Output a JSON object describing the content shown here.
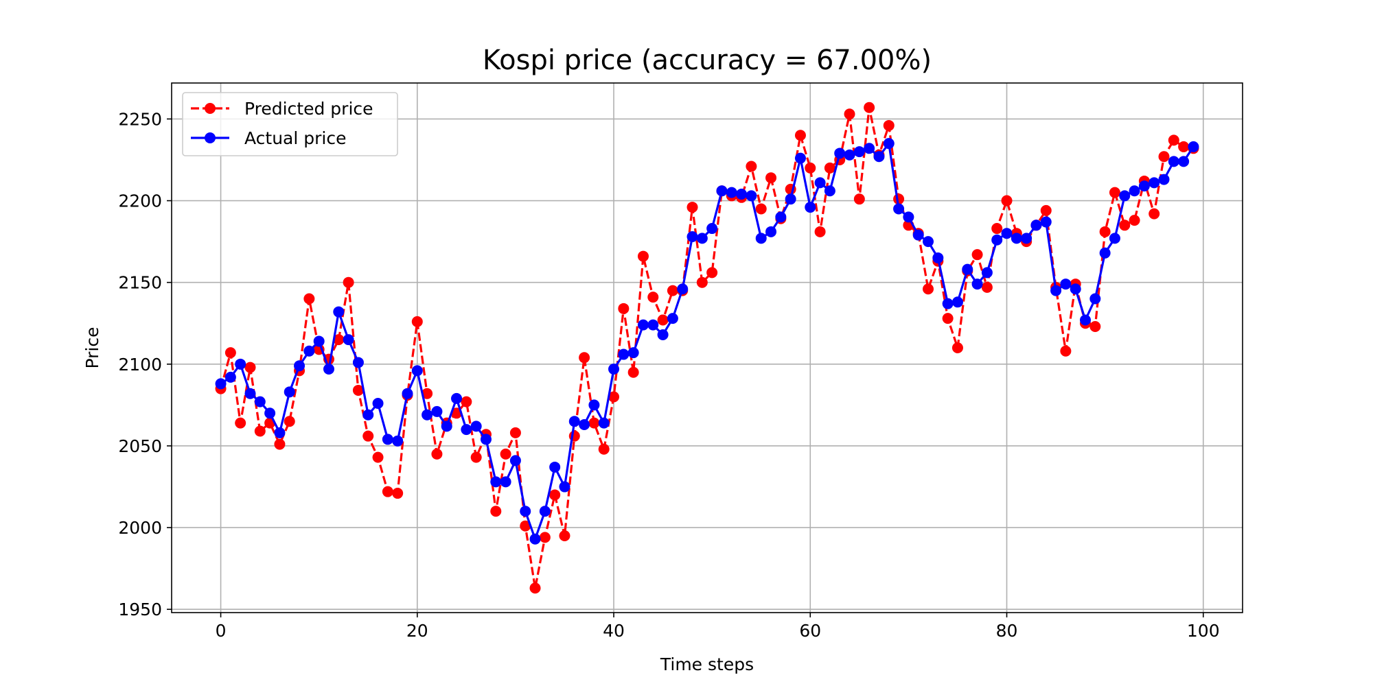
{
  "chart_data": {
    "type": "line",
    "title": "Kospi price (accuracy = 67.00%)",
    "xlabel": "Time steps",
    "ylabel": "Price",
    "xlim": [
      -5,
      104
    ],
    "ylim": [
      1948,
      2272
    ],
    "xticks": [
      0,
      20,
      40,
      60,
      80,
      100
    ],
    "yticks": [
      1950,
      2000,
      2050,
      2100,
      2150,
      2200,
      2250
    ],
    "grid": true,
    "legend_position": "upper-left",
    "series": [
      {
        "name": "Predicted price",
        "color": "#ff0000",
        "line_style": "dashed",
        "marker": "circle",
        "values": [
          2085,
          2107,
          2064,
          2098,
          2059,
          2064,
          2051,
          2065,
          2096,
          2140,
          2109,
          2103,
          2115,
          2150,
          2084,
          2056,
          2043,
          2022,
          2021,
          2081,
          2126,
          2082,
          2045,
          2064,
          2070,
          2077,
          2043,
          2057,
          2010,
          2045,
          2058,
          2001,
          1963,
          1994,
          2020,
          1995,
          2056,
          2104,
          2064,
          2048,
          2080,
          2134,
          2095,
          2166,
          2141,
          2127,
          2145,
          2145,
          2196,
          2150,
          2156,
          2206,
          2203,
          2202,
          2221,
          2195,
          2214,
          2189,
          2207,
          2240,
          2220,
          2181,
          2220,
          2225,
          2253,
          2201,
          2257,
          2228,
          2246,
          2201,
          2185,
          2180,
          2146,
          2163,
          2128,
          2110,
          2157,
          2167,
          2147,
          2183,
          2200,
          2180,
          2175,
          2185,
          2194,
          2147,
          2108,
          2149,
          2125,
          2123,
          2181,
          2205,
          2185,
          2188,
          2212,
          2192,
          2227,
          2237,
          2233,
          2232
        ]
      },
      {
        "name": "Actual price",
        "color": "#0000ff",
        "line_style": "solid",
        "marker": "circle",
        "values": [
          2088,
          2092,
          2100,
          2082,
          2077,
          2070,
          2058,
          2083,
          2099,
          2108,
          2114,
          2097,
          2132,
          2115,
          2101,
          2069,
          2076,
          2054,
          2053,
          2082,
          2096,
          2069,
          2071,
          2062,
          2079,
          2060,
          2062,
          2054,
          2028,
          2028,
          2041,
          2010,
          1993,
          2010,
          2037,
          2025,
          2065,
          2063,
          2075,
          2064,
          2097,
          2106,
          2107,
          2124,
          2124,
          2118,
          2128,
          2146,
          2178,
          2177,
          2183,
          2206,
          2205,
          2204,
          2203,
          2177,
          2181,
          2190,
          2201,
          2226,
          2196,
          2211,
          2206,
          2229,
          2228,
          2230,
          2232,
          2227,
          2235,
          2195,
          2190,
          2179,
          2175,
          2165,
          2137,
          2138,
          2158,
          2149,
          2156,
          2176,
          2180,
          2177,
          2177,
          2185,
          2187,
          2145,
          2149,
          2146,
          2127,
          2140,
          2168,
          2177,
          2203,
          2206,
          2209,
          2211,
          2213,
          2224,
          2224,
          2233
        ]
      }
    ]
  }
}
